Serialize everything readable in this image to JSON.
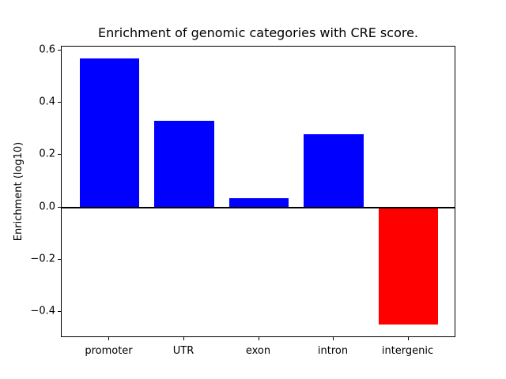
{
  "chart_data": {
    "type": "bar",
    "title": "Enrichment of genomic categories with CRE score.",
    "xlabel": "",
    "ylabel": "Enrichment (log10)",
    "categories": [
      "promoter",
      "UTR",
      "exon",
      "intron",
      "intergenic"
    ],
    "values": [
      0.57,
      0.33,
      0.035,
      0.28,
      -0.45
    ],
    "positive_color": "#0000ff",
    "negative_color": "#ff0000",
    "bar_colors": [
      "#0000ff",
      "#0000ff",
      "#0000ff",
      "#0000ff",
      "#ff0000"
    ],
    "ylim": [
      -0.5,
      0.615
    ],
    "yticks": [
      0.6,
      0.4,
      0.2,
      0.0,
      -0.2,
      -0.4
    ],
    "ytick_labels": [
      "0.6",
      "0.4",
      "0.2",
      "0.0",
      "−0.2",
      "−0.4"
    ],
    "zero_line": true,
    "grid": false,
    "legend": false,
    "axis_color": "#000000",
    "background_color": "#ffffff"
  }
}
